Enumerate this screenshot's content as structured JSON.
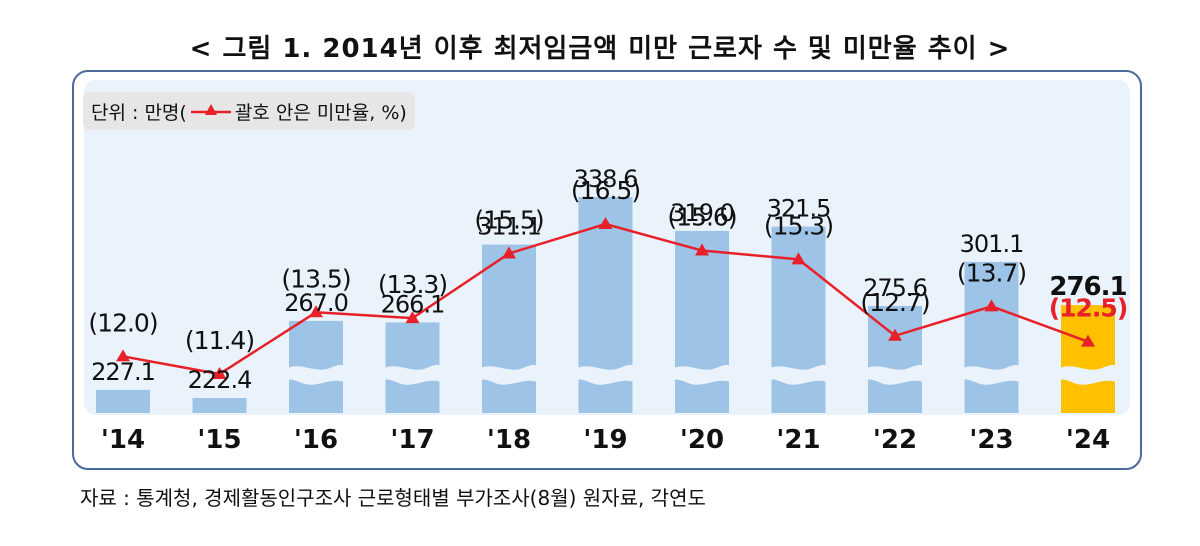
{
  "title": "< 그림 1. 2014년 이후 최저임금액 미만 근로자 수 및 미만율 추이 >",
  "legend": {
    "unit_prefix": "단위 : 만명(",
    "unit_suffix": "괄호 안은 미만율, %)"
  },
  "source": "자료 : 통계청, 경제활동인구조사 근로형태별 부가조사(8월) 원자료, 각연도",
  "chart_data": {
    "type": "bar",
    "categories": [
      "'14",
      "'15",
      "'16",
      "'17",
      "'18",
      "'19",
      "'20",
      "'21",
      "'22",
      "'23",
      "'24"
    ],
    "series": [
      {
        "name": "",
        "type": "bar",
        "values": [
          227.1,
          222.4,
          267.0,
          266.1,
          311.1,
          338.6,
          319.0,
          321.5,
          275.6,
          301.1,
          276.1
        ]
      },
      {
        "name": "미만율",
        "type": "line",
        "values": [
          12.0,
          11.4,
          13.5,
          13.3,
          15.5,
          16.5,
          15.6,
          15.3,
          12.7,
          13.7,
          12.5
        ]
      }
    ],
    "bar_labels": [
      "227.1",
      "222.4",
      "267.0",
      "266.1",
      "311.1",
      "338.6",
      "319.0",
      "321.5",
      "275.6",
      "301.1",
      "276.1"
    ],
    "rate_labels": [
      "(12.0)",
      "(11.4)",
      "(13.5)",
      "(13.3)",
      "(15.5)",
      "(16.5)",
      "(15.6)",
      "(15.3)",
      "(12.7)",
      "(13.7)",
      "(12.5)"
    ],
    "highlight_index": 10,
    "axis_break": true,
    "colors": {
      "bar": "#9dc3e6",
      "highlight_bar": "#ffc000",
      "line": "#e8202a",
      "highlight_label": "#e8202a"
    }
  }
}
